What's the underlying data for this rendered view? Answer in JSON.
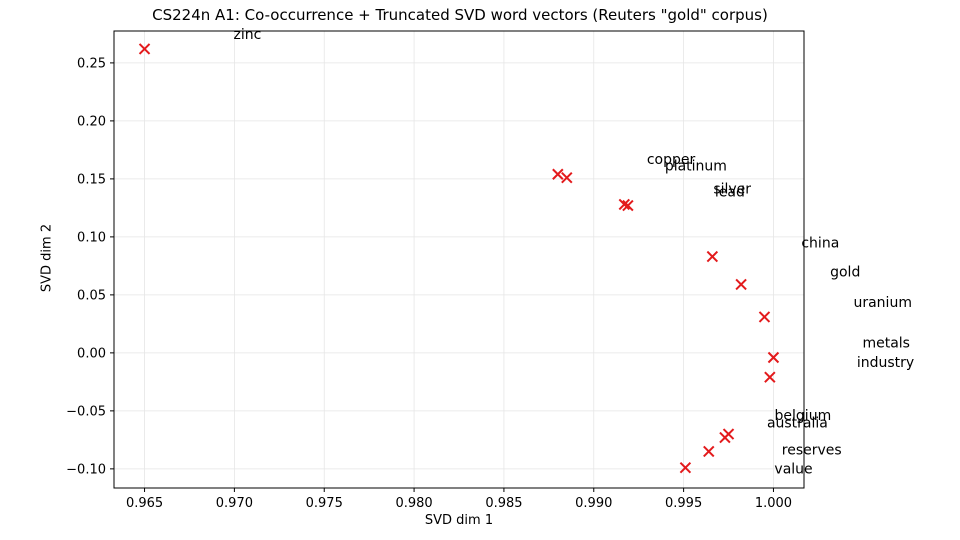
{
  "chart_data": {
    "type": "scatter",
    "title": "CS224n A1: Co-occurrence + Truncated SVD word vectors (Reuters \"gold\" corpus)",
    "xlabel": "SVD dim 1",
    "ylabel": "SVD dim 2",
    "xlim": [
      0.9633,
      1.0017
    ],
    "ylim": [
      -0.1165,
      0.2775
    ],
    "xticks": [
      "0.965",
      "0.970",
      "0.975",
      "0.980",
      "0.985",
      "0.990",
      "0.995",
      "1.000"
    ],
    "yticks": [
      "−0.10",
      "−0.05",
      "0.00",
      "0.05",
      "0.10",
      "0.15",
      "0.20",
      "0.25"
    ],
    "grid": true,
    "marker": "x",
    "marker_color": "#e31a1c",
    "points": [
      {
        "word": "zinc",
        "x": 0.965,
        "y": 0.262
      },
      {
        "word": "copper",
        "x": 0.988,
        "y": 0.154
      },
      {
        "word": "platinum",
        "x": 0.9885,
        "y": 0.151
      },
      {
        "word": "silver",
        "x": 0.9917,
        "y": 0.128
      },
      {
        "word": "lead",
        "x": 0.9919,
        "y": 0.127
      },
      {
        "word": "china",
        "x": 0.9966,
        "y": 0.083
      },
      {
        "word": "gold",
        "x": 0.9982,
        "y": 0.059
      },
      {
        "word": "uranium",
        "x": 0.9995,
        "y": 0.031
      },
      {
        "word": "metals",
        "x": 1.0,
        "y": -0.004
      },
      {
        "word": "industry",
        "x": 0.9998,
        "y": -0.021
      },
      {
        "word": "belgium",
        "x": 0.9975,
        "y": -0.07
      },
      {
        "word": "australia",
        "x": 0.9973,
        "y": -0.073
      },
      {
        "word": "reserves",
        "x": 0.9964,
        "y": -0.085
      },
      {
        "word": "value",
        "x": 0.9951,
        "y": -0.099
      }
    ]
  }
}
